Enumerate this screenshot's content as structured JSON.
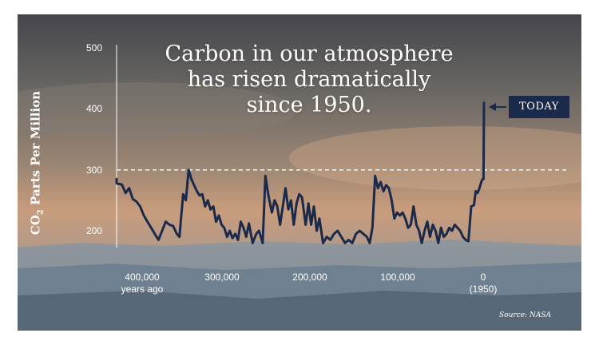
{
  "title_lines": [
    "Carbon in our atmosphere",
    "has risen dramatically",
    "since 1950."
  ],
  "yaxis_title_main": "CO",
  "yaxis_title_sub": "2",
  "yaxis_title_rest": " Parts Per Million",
  "source": "Source: NASA",
  "today_label": "TODAY",
  "colors": {
    "line": "#1b2a4a",
    "badge": "#1b2a4a",
    "reference_line": "#ffffff"
  },
  "chart_data": {
    "type": "line",
    "title": "Carbon in our atmosphere has risen dramatically since 1950.",
    "ylabel": "CO2 Parts Per Million",
    "xlabel": "",
    "ylim": [
      160,
      500
    ],
    "xlim": [
      410000,
      -10000
    ],
    "y_ticks": [
      "500",
      "400",
      "300",
      "200"
    ],
    "x_ticks": [
      {
        "value": 400000,
        "line1": "400,000",
        "line2": "years ago"
      },
      {
        "value": 300000,
        "line1": "300,000",
        "line2": ""
      },
      {
        "value": 200000,
        "line1": "200,000",
        "line2": ""
      },
      {
        "value": 100000,
        "line1": "100,000",
        "line2": ""
      },
      {
        "value": 0,
        "line1": "0",
        "line2": "(1950)"
      }
    ],
    "reference_line": {
      "y": 300,
      "style": "dashed"
    },
    "annotation": {
      "label": "TODAY",
      "points_to": [
        0,
        410
      ]
    },
    "grid": false,
    "legend": "none",
    "series": [
      {
        "x": [
          410000,
          406000,
          404000,
          400000,
          396000,
          392000,
          388000,
          384000,
          380000,
          376000,
          372000,
          368000,
          364000,
          360000,
          356000,
          352000,
          348000,
          344000,
          340000,
          336000,
          333000,
          329000,
          326000,
          323000,
          320000,
          317000,
          314000,
          311000,
          308000,
          305000,
          302000,
          299000,
          296000,
          293000,
          290000,
          287000,
          284000,
          281000,
          278000,
          275000,
          272000,
          269000,
          266000,
          263000,
          260000,
          257000,
          253000,
          249000,
          246000,
          242000,
          239000,
          236000,
          232000,
          229000,
          226000,
          223000,
          220000,
          217000,
          214000,
          211000,
          208000,
          205000,
          202000,
          199000,
          195000,
          192000,
          189000,
          186000,
          183000,
          180000,
          176000,
          172000,
          168000,
          164000,
          160000,
          156000,
          152000,
          148000,
          144000,
          140000,
          136000,
          132000,
          128000,
          125000,
          122000,
          119000,
          116000,
          113000,
          110000,
          107000,
          104000,
          101000,
          98000,
          95000,
          92000,
          89000,
          86000,
          83000,
          80000,
          77000,
          74000,
          71000,
          68000,
          65000,
          62000,
          59000,
          56000,
          53000,
          50000,
          47000,
          44000,
          41000,
          38000,
          35000,
          32000,
          29000,
          26000,
          23000,
          20000,
          17000,
          14000,
          11000,
          9000,
          7000,
          5000,
          3000,
          1500,
          500,
          0
        ],
        "y": [
          280,
          285,
          278,
          277,
          276,
          262,
          270,
          252,
          248,
          240,
          225,
          215,
          205,
          195,
          185,
          200,
          215,
          210,
          208,
          195,
          190,
          260,
          250,
          300,
          285,
          275,
          265,
          258,
          260,
          240,
          250,
          235,
          240,
          215,
          225,
          210,
          205,
          190,
          200,
          188,
          195,
          185,
          215,
          205,
          190,
          212,
          180,
          195,
          200,
          180,
          290,
          260,
          230,
          250,
          240,
          210,
          240,
          270,
          235,
          250,
          210,
          245,
          260,
          255,
          210,
          245,
          210,
          240,
          200,
          220,
          180,
          190,
          185,
          195,
          200,
          190,
          180,
          185,
          180,
          195,
          200,
          195,
          190,
          180,
          205,
          290,
          270,
          280,
          265,
          275,
          270,
          250,
          220,
          230,
          225,
          230,
          220,
          205,
          210,
          240,
          210,
          200,
          180,
          200,
          215,
          190,
          210,
          200,
          180,
          205,
          190,
          195,
          205,
          200,
          210,
          205,
          200,
          190,
          185,
          183,
          240,
          242,
          265,
          262,
          270,
          280,
          285,
          285,
          410
        ]
      }
    ]
  }
}
